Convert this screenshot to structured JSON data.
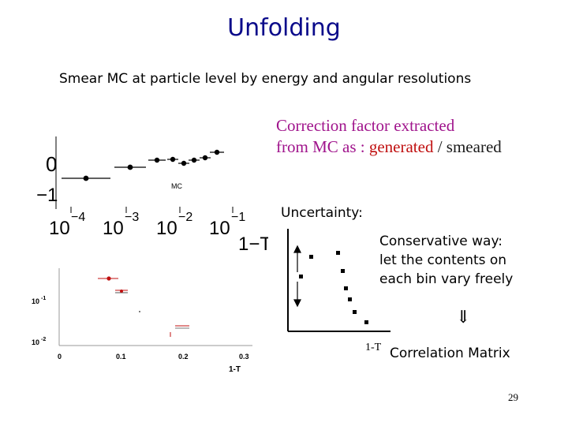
{
  "title": "Unfolding",
  "subtitle": "Smear MC at particle level by energy and angular resolutions",
  "correction": {
    "line1": "Correction factor extracted",
    "line2_prefix": "from MC as : ",
    "generated": "generated",
    "separator": " / ",
    "smeared": "smeared"
  },
  "uncertainty_label": "Uncertainty:",
  "conservative": {
    "line1": "Conservative way:",
    "line2": "let the contents on",
    "line3": "each bin vary freely"
  },
  "implies_symbol": "⇓",
  "one_minus_t": "1-T",
  "correlation_matrix": "Correlation Matrix",
  "page_number": "29",
  "top_plot": {
    "y_ticks": [
      "0",
      "−1"
    ],
    "x_tick_bases": [
      "10",
      "10",
      "10",
      "10"
    ],
    "x_tick_exps": [
      "−4",
      "−3",
      "−2",
      "−1"
    ],
    "xlabel": "1−T",
    "mc_label": "MC"
  },
  "bottom_plot": {
    "y_ticks": [
      "10",
      "10"
    ],
    "y_tick_exps": [
      "-1",
      "-2"
    ],
    "x_ticks": [
      "0",
      "0.1",
      "0.2",
      "0.3"
    ],
    "xlabel": "1-T"
  },
  "colors": {
    "title": "#0a0a8a",
    "correction_text": "#a0148c",
    "generated": "#c01010",
    "marker_red": "#c01010"
  }
}
